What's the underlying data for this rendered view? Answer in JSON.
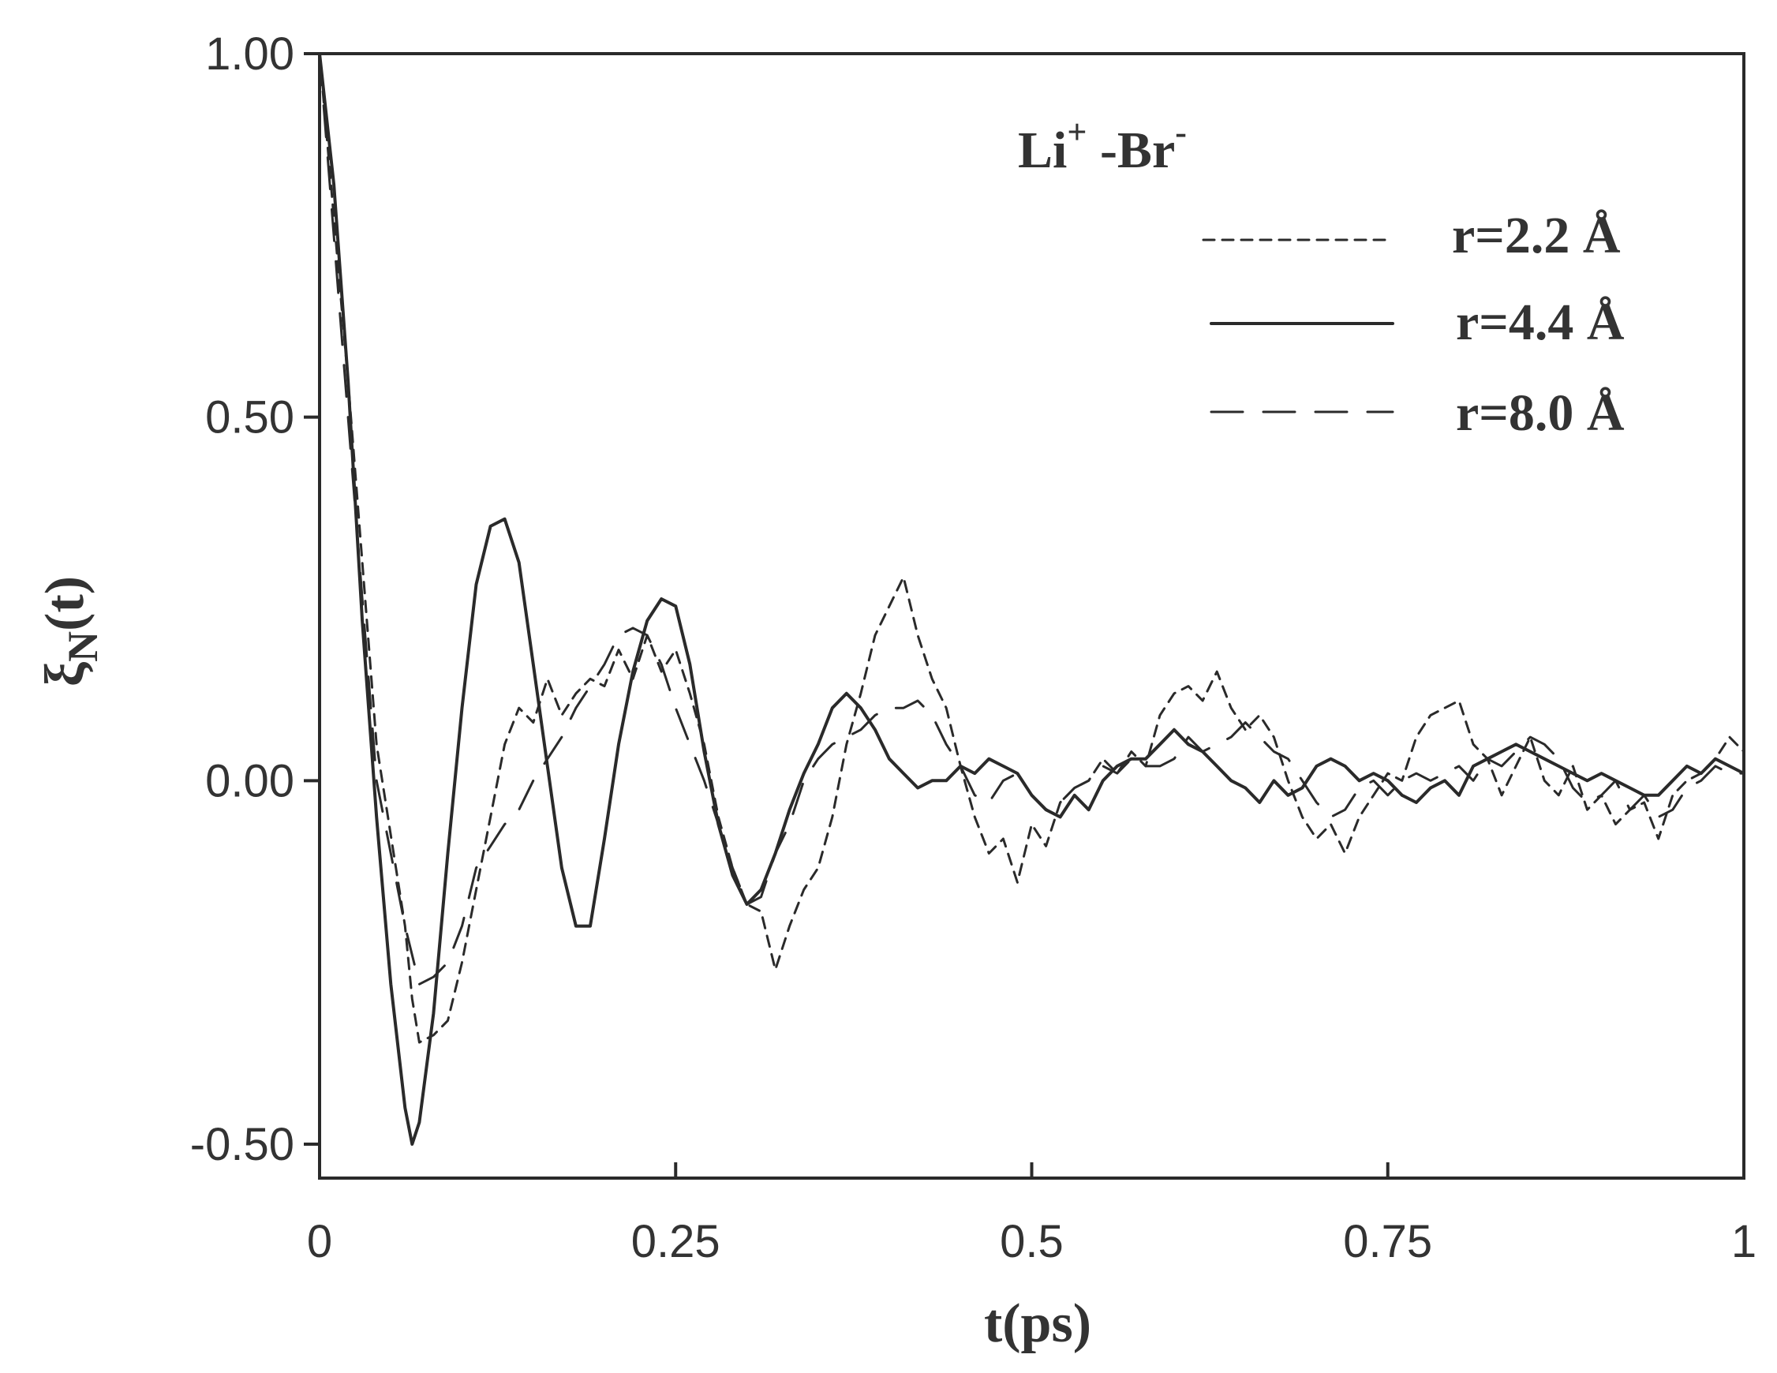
{
  "chart_data": {
    "type": "line",
    "annotation": {
      "main": "Li",
      "sup1": "+",
      "mid": " -Br",
      "sup2": "-"
    },
    "xlabel": "t(ps)",
    "ylabel": {
      "main": "ξ",
      "sub": "N",
      "tail": "(t)"
    },
    "xlim": [
      0,
      1
    ],
    "ylim": [
      -0.55,
      1.0
    ],
    "xticks": [
      {
        "value": 0,
        "label": "0"
      },
      {
        "value": 0.25,
        "label": "0.25"
      },
      {
        "value": 0.5,
        "label": "0.5"
      },
      {
        "value": 0.75,
        "label": "0.75"
      },
      {
        "value": 1,
        "label": "1"
      }
    ],
    "yticks": [
      {
        "value": 1.0,
        "label": "1.00"
      },
      {
        "value": 0.5,
        "label": "0.50"
      },
      {
        "value": 0.0,
        "label": "0.00"
      },
      {
        "value": -0.5,
        "label": "-0.50"
      }
    ],
    "grid": false,
    "legend_position": "top-right",
    "series": [
      {
        "name": "r=2.2 Å",
        "dash": "short",
        "x": [
          0,
          0.02,
          0.04,
          0.06,
          0.065,
          0.07,
          0.08,
          0.09,
          0.1,
          0.11,
          0.12,
          0.13,
          0.14,
          0.15,
          0.16,
          0.17,
          0.18,
          0.19,
          0.2,
          0.21,
          0.22,
          0.23,
          0.24,
          0.25,
          0.26,
          0.27,
          0.28,
          0.29,
          0.3,
          0.31,
          0.32,
          0.33,
          0.34,
          0.35,
          0.36,
          0.37,
          0.38,
          0.39,
          0.4,
          0.41,
          0.42,
          0.43,
          0.44,
          0.45,
          0.46,
          0.47,
          0.48,
          0.49,
          0.5,
          0.51,
          0.52,
          0.53,
          0.54,
          0.55,
          0.56,
          0.57,
          0.58,
          0.59,
          0.6,
          0.61,
          0.62,
          0.63,
          0.64,
          0.65,
          0.66,
          0.67,
          0.68,
          0.69,
          0.7,
          0.71,
          0.72,
          0.73,
          0.74,
          0.75,
          0.76,
          0.77,
          0.78,
          0.79,
          0.8,
          0.81,
          0.82,
          0.83,
          0.84,
          0.85,
          0.86,
          0.87,
          0.88,
          0.89,
          0.9,
          0.91,
          0.92,
          0.93,
          0.94,
          0.95,
          0.96,
          0.97,
          0.98,
          0.99,
          1.0
        ],
        "y": [
          1.0,
          0.55,
          0.05,
          -0.2,
          -0.3,
          -0.36,
          -0.35,
          -0.33,
          -0.25,
          -0.15,
          -0.05,
          0.05,
          0.1,
          0.08,
          0.14,
          0.09,
          0.12,
          0.14,
          0.13,
          0.18,
          0.14,
          0.2,
          0.15,
          0.18,
          0.12,
          0.05,
          -0.05,
          -0.12,
          -0.17,
          -0.18,
          -0.26,
          -0.2,
          -0.15,
          -0.12,
          -0.05,
          0.05,
          0.12,
          0.2,
          0.24,
          0.28,
          0.2,
          0.14,
          0.1,
          0.02,
          -0.05,
          -0.1,
          -0.08,
          -0.14,
          -0.06,
          -0.09,
          -0.03,
          -0.01,
          0.0,
          0.03,
          0.01,
          0.04,
          0.02,
          0.09,
          0.12,
          0.13,
          0.11,
          0.15,
          0.1,
          0.07,
          0.09,
          0.06,
          0.0,
          -0.05,
          -0.08,
          -0.06,
          -0.1,
          -0.05,
          -0.02,
          0.01,
          0.0,
          0.06,
          0.09,
          0.1,
          0.11,
          0.05,
          0.03,
          -0.02,
          0.02,
          0.06,
          0.0,
          -0.02,
          0.02,
          -0.04,
          -0.02,
          -0.06,
          -0.04,
          -0.03,
          -0.08,
          -0.02,
          0.0,
          0.01,
          0.03,
          0.06,
          0.04
        ]
      },
      {
        "name": "r=4.4 Å",
        "dash": "solid",
        "x": [
          0,
          0.01,
          0.02,
          0.03,
          0.04,
          0.05,
          0.06,
          0.065,
          0.07,
          0.08,
          0.09,
          0.1,
          0.11,
          0.12,
          0.13,
          0.14,
          0.15,
          0.16,
          0.17,
          0.18,
          0.19,
          0.2,
          0.21,
          0.22,
          0.23,
          0.24,
          0.25,
          0.26,
          0.27,
          0.28,
          0.29,
          0.3,
          0.31,
          0.32,
          0.33,
          0.34,
          0.35,
          0.36,
          0.37,
          0.38,
          0.39,
          0.4,
          0.41,
          0.42,
          0.43,
          0.44,
          0.45,
          0.46,
          0.47,
          0.48,
          0.49,
          0.5,
          0.51,
          0.52,
          0.53,
          0.54,
          0.55,
          0.56,
          0.57,
          0.58,
          0.59,
          0.6,
          0.61,
          0.62,
          0.63,
          0.64,
          0.65,
          0.66,
          0.67,
          0.68,
          0.69,
          0.7,
          0.71,
          0.72,
          0.73,
          0.74,
          0.75,
          0.76,
          0.77,
          0.78,
          0.79,
          0.8,
          0.81,
          0.82,
          0.83,
          0.84,
          0.85,
          0.86,
          0.87,
          0.88,
          0.89,
          0.9,
          0.91,
          0.92,
          0.93,
          0.94,
          0.95,
          0.96,
          0.97,
          0.98,
          0.99,
          1.0
        ],
        "y": [
          1.0,
          0.82,
          0.55,
          0.22,
          -0.05,
          -0.28,
          -0.45,
          -0.5,
          -0.47,
          -0.32,
          -0.1,
          0.1,
          0.27,
          0.35,
          0.36,
          0.3,
          0.16,
          0.02,
          -0.12,
          -0.2,
          -0.2,
          -0.08,
          0.05,
          0.15,
          0.22,
          0.25,
          0.24,
          0.16,
          0.04,
          -0.06,
          -0.13,
          -0.17,
          -0.15,
          -0.1,
          -0.04,
          0.01,
          0.05,
          0.1,
          0.12,
          0.1,
          0.07,
          0.03,
          0.01,
          -0.01,
          0.0,
          0.0,
          0.02,
          0.01,
          0.03,
          0.02,
          0.01,
          -0.02,
          -0.04,
          -0.05,
          -0.02,
          -0.04,
          0.0,
          0.02,
          0.03,
          0.03,
          0.05,
          0.07,
          0.05,
          0.04,
          0.02,
          0.0,
          -0.01,
          -0.03,
          0.0,
          -0.02,
          -0.01,
          0.02,
          0.03,
          0.02,
          0.0,
          0.01,
          0.0,
          -0.02,
          -0.03,
          -0.01,
          0.0,
          -0.02,
          0.02,
          0.03,
          0.04,
          0.05,
          0.04,
          0.03,
          0.02,
          0.01,
          0.0,
          0.01,
          0.0,
          -0.01,
          -0.02,
          -0.02,
          0.0,
          0.02,
          0.01,
          0.03,
          0.02,
          0.01
        ]
      },
      {
        "name": "r=8.0 Å",
        "dash": "long",
        "x": [
          0,
          0.02,
          0.04,
          0.06,
          0.07,
          0.08,
          0.09,
          0.1,
          0.11,
          0.12,
          0.13,
          0.14,
          0.15,
          0.16,
          0.17,
          0.18,
          0.19,
          0.2,
          0.21,
          0.22,
          0.23,
          0.24,
          0.25,
          0.26,
          0.27,
          0.28,
          0.29,
          0.3,
          0.31,
          0.32,
          0.33,
          0.34,
          0.35,
          0.36,
          0.37,
          0.38,
          0.39,
          0.4,
          0.41,
          0.42,
          0.43,
          0.44,
          0.45,
          0.46,
          0.47,
          0.48,
          0.49,
          0.5,
          0.51,
          0.52,
          0.53,
          0.54,
          0.55,
          0.56,
          0.57,
          0.58,
          0.59,
          0.6,
          0.61,
          0.62,
          0.63,
          0.64,
          0.65,
          0.66,
          0.67,
          0.68,
          0.69,
          0.7,
          0.71,
          0.72,
          0.73,
          0.74,
          0.75,
          0.76,
          0.77,
          0.78,
          0.79,
          0.8,
          0.81,
          0.82,
          0.83,
          0.84,
          0.85,
          0.86,
          0.87,
          0.88,
          0.89,
          0.9,
          0.91,
          0.92,
          0.93,
          0.94,
          0.95,
          0.96,
          0.97,
          0.98,
          0.99,
          1.0
        ],
        "y": [
          1.0,
          0.5,
          0.0,
          -0.2,
          -0.28,
          -0.27,
          -0.25,
          -0.2,
          -0.12,
          -0.09,
          -0.06,
          -0.04,
          0.0,
          0.03,
          0.06,
          0.1,
          0.13,
          0.16,
          0.2,
          0.21,
          0.2,
          0.16,
          0.1,
          0.05,
          0.0,
          -0.06,
          -0.12,
          -0.17,
          -0.16,
          -0.1,
          -0.06,
          0.0,
          0.03,
          0.05,
          0.06,
          0.07,
          0.09,
          0.1,
          0.1,
          0.11,
          0.09,
          0.05,
          0.02,
          -0.02,
          -0.03,
          0.0,
          0.01,
          -0.02,
          -0.04,
          -0.03,
          -0.01,
          0.0,
          0.02,
          0.01,
          0.03,
          0.02,
          0.02,
          0.03,
          0.06,
          0.04,
          0.05,
          0.06,
          0.08,
          0.06,
          0.04,
          0.03,
          0.0,
          -0.03,
          -0.05,
          -0.04,
          -0.01,
          0.0,
          -0.02,
          0.0,
          0.01,
          0.0,
          0.01,
          0.02,
          0.0,
          0.03,
          0.02,
          0.04,
          0.06,
          0.05,
          0.03,
          -0.01,
          -0.03,
          -0.02,
          0.0,
          -0.04,
          -0.02,
          -0.05,
          -0.04,
          -0.01,
          0.0,
          0.02,
          0.01,
          0.01
        ]
      }
    ]
  }
}
